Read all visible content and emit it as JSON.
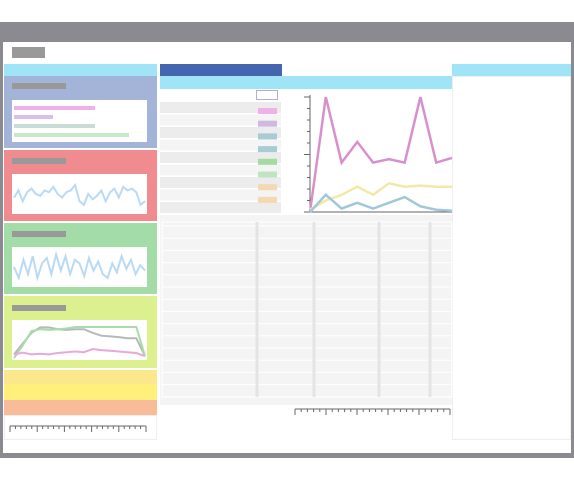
{
  "chart_data": [
    {
      "type": "line",
      "ylim": [
        0,
        100
      ],
      "yticks": [
        0,
        10,
        20,
        30,
        40,
        50,
        60,
        70,
        80,
        90,
        100
      ],
      "series": [
        {
          "color": "#d890cc",
          "values": [
            0,
            100,
            43,
            61,
            43,
            46,
            43,
            100,
            43,
            47
          ]
        },
        {
          "color": "#f4e8a8",
          "values": [
            2,
            10,
            15,
            22,
            15,
            25,
            22,
            23,
            22,
            22
          ]
        },
        {
          "color": "#a0c8d8",
          "values": [
            0,
            15,
            3,
            8,
            3,
            8,
            13,
            5,
            2,
            1
          ]
        }
      ]
    },
    {
      "type": "line",
      "ylim": [
        0,
        100
      ],
      "series": [
        {
          "color": "#b8daf4",
          "values": [
            40,
            60,
            30,
            55,
            65,
            50,
            45,
            60,
            55,
            70,
            50,
            40,
            55,
            60,
            75,
            30,
            20,
            50,
            35,
            45,
            60,
            30,
            55,
            65,
            40,
            70,
            60,
            65,
            55,
            20,
            30
          ]
        }
      ]
    },
    {
      "type": "line",
      "ylim": [
        0,
        100
      ],
      "series": [
        {
          "color": "#b8daf4",
          "values": [
            50,
            20,
            70,
            30,
            80,
            20,
            60,
            75,
            30,
            85,
            40,
            80,
            30,
            70,
            60,
            25,
            75,
            40,
            65,
            30,
            20,
            60,
            35,
            80,
            45,
            70,
            30,
            55,
            40
          ]
        }
      ]
    },
    {
      "type": "line",
      "ylim": [
        0,
        100
      ],
      "series": [
        {
          "color": "#b8b8b8",
          "values": [
            10,
            40,
            70,
            85,
            85,
            80,
            78,
            80,
            80,
            70,
            62,
            60,
            58,
            55,
            55,
            5
          ]
        },
        {
          "color": "#a8dca8",
          "values": [
            0,
            35,
            75,
            80,
            78,
            80,
            82,
            86,
            86,
            86,
            86,
            86,
            86,
            86,
            86,
            5
          ]
        },
        {
          "color": "#e8a8d8",
          "values": [
            10,
            15,
            10,
            12,
            10,
            14,
            16,
            18,
            16,
            25,
            22,
            20,
            18,
            16,
            14,
            5
          ]
        }
      ]
    }
  ]
}
